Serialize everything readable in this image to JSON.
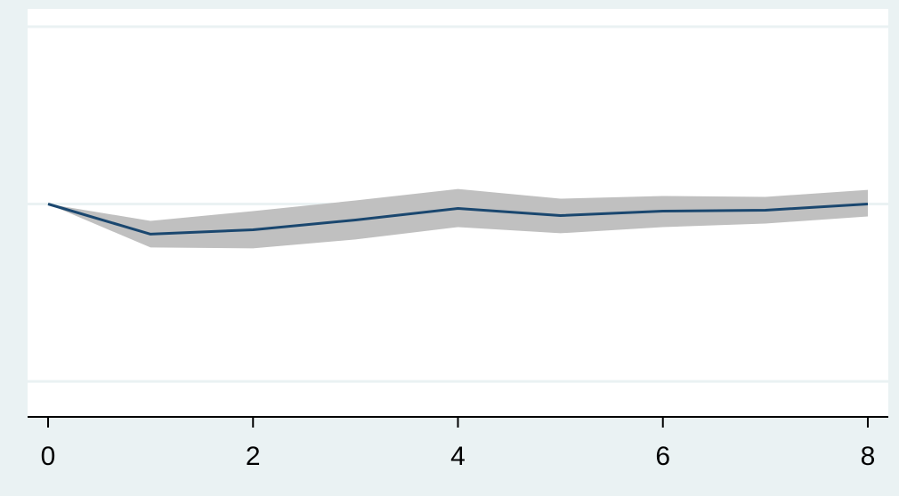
{
  "chart_data": {
    "type": "line",
    "title": "",
    "xlabel": "",
    "ylabel": "",
    "x": [
      0,
      1,
      2,
      3,
      4,
      5,
      6,
      7,
      8
    ],
    "series": [
      {
        "values": [
          0,
          -0.17,
          -0.145,
          -0.09,
          -0.025,
          -0.065,
          -0.04,
          -0.035,
          0
        ],
        "ci_lower": [
          0,
          -0.245,
          -0.25,
          -0.2,
          -0.13,
          -0.165,
          -0.13,
          -0.11,
          -0.07
        ],
        "ci_upper": [
          0,
          -0.095,
          -0.04,
          0.02,
          0.085,
          0.03,
          0.045,
          0.04,
          0.08
        ]
      }
    ],
    "xlim": [
      -0.2,
      8.2
    ],
    "ylim": [
      -1.2,
      1.1
    ],
    "xticks": [
      0,
      2,
      4,
      6,
      8
    ],
    "xtick_labels": [
      "0",
      "2",
      "4",
      "6",
      "8"
    ],
    "ygrid_values": [
      -1,
      0,
      1
    ],
    "grid": true,
    "colors": {
      "background": "#eaf2f3",
      "plot_background": "#ffffff",
      "grid": "#eaf2f3",
      "line": "#1a476f",
      "ci_band": "#c0c0c0",
      "axis": "#000000"
    }
  }
}
